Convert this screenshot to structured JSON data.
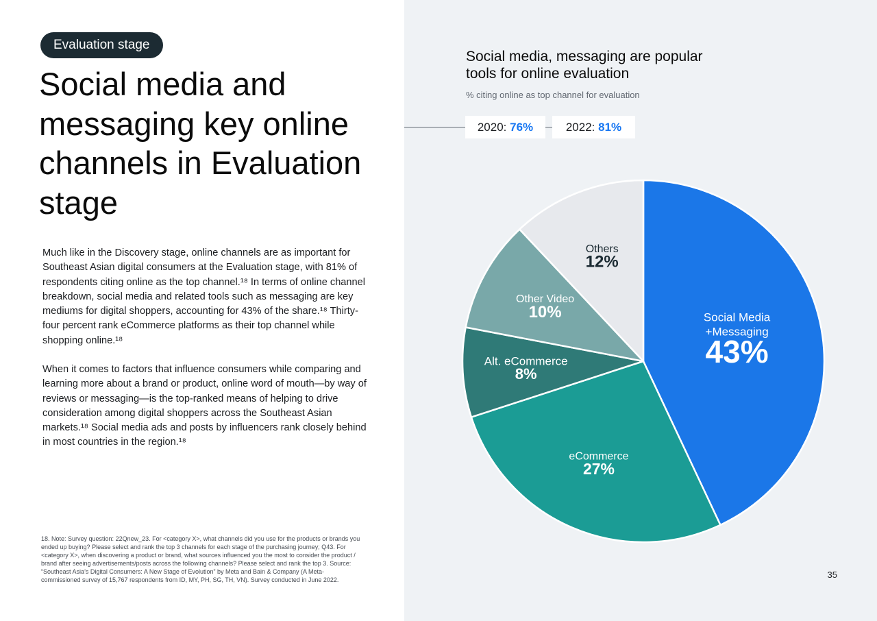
{
  "left": {
    "stage_label": "Evaluation stage",
    "title": "Social media and messaging key online channels in Evaluation stage",
    "paragraph_1": "Much like in the Discovery stage, online channels are as important for Southeast Asian digital consumers at the Evaluation stage, with 81% of respondents citing online as the top channel.¹⁸ In terms of online channel breakdown, social media and related tools such as messaging are key mediums for digital shoppers, accounting for 43% of the share.¹⁸ Thirty-four percent rank eCommerce platforms as their top channel while shopping online.¹⁸",
    "paragraph_2": "When it comes to factors that influence consumers while comparing and learning more about a brand or product, online word of mouth—by way of reviews or messaging—is the top-ranked means of helping to drive consideration among digital shoppers across the Southeast Asian markets.¹⁸ Social media ads and posts by influencers rank closely behind in most countries in the region.¹⁸",
    "footnote": "18. Note: Survey question: 22Qnew_23. For <category X>, what channels did you use for the products or brands you ended up buying? Please select and rank the top 3 channels for each stage of the purchasing journey; Q43. For <category X>, when discovering a product or brand, what sources influenced you the most to consider the product / brand after seeing advertisements/posts across the following channels? Please select and rank the top 3. Source: “Southeast Asia’s Digital Consumers: A New Stage of Evolution” by Meta and Bain & Company (A Meta-commissioned survey of 15,767 respondents from ID, MY, PH, SG, TH, VN). Survey conducted in June 2022."
  },
  "page_number": "35",
  "years": {
    "y2020_label": "2020:",
    "y2020_value": "76%",
    "y2022_label": "2022:",
    "y2022_value": "81%"
  },
  "chart_data": {
    "type": "pie",
    "title": "Social media, messaging are popular tools for online evaluation",
    "subtitle": "% citing online as top channel for evaluation",
    "slices": [
      {
        "label_lines": [
          "Social Media",
          "+Messaging"
        ],
        "value": 43,
        "value_label": "43%",
        "color": "#1b77e8",
        "label_color": "#ffffff"
      },
      {
        "label_lines": [
          "eCommerce"
        ],
        "value": 27,
        "value_label": "27%",
        "color": "#1b9c95",
        "label_color": "#ffffff"
      },
      {
        "label_lines": [
          "Alt. eCommerce"
        ],
        "value": 8,
        "value_label": "8%",
        "color": "#2f7a77",
        "label_color": "#ffffff"
      },
      {
        "label_lines": [
          "Other Video"
        ],
        "value": 10,
        "value_label": "10%",
        "color": "#79a8a9",
        "label_color": "#ffffff"
      },
      {
        "label_lines": [
          "Others"
        ],
        "value": 12,
        "value_label": "12%",
        "color": "#e7e9ed",
        "label_color": "#1c2b33"
      }
    ],
    "start_angle": "12 o'clock",
    "direction": "clockwise"
  }
}
